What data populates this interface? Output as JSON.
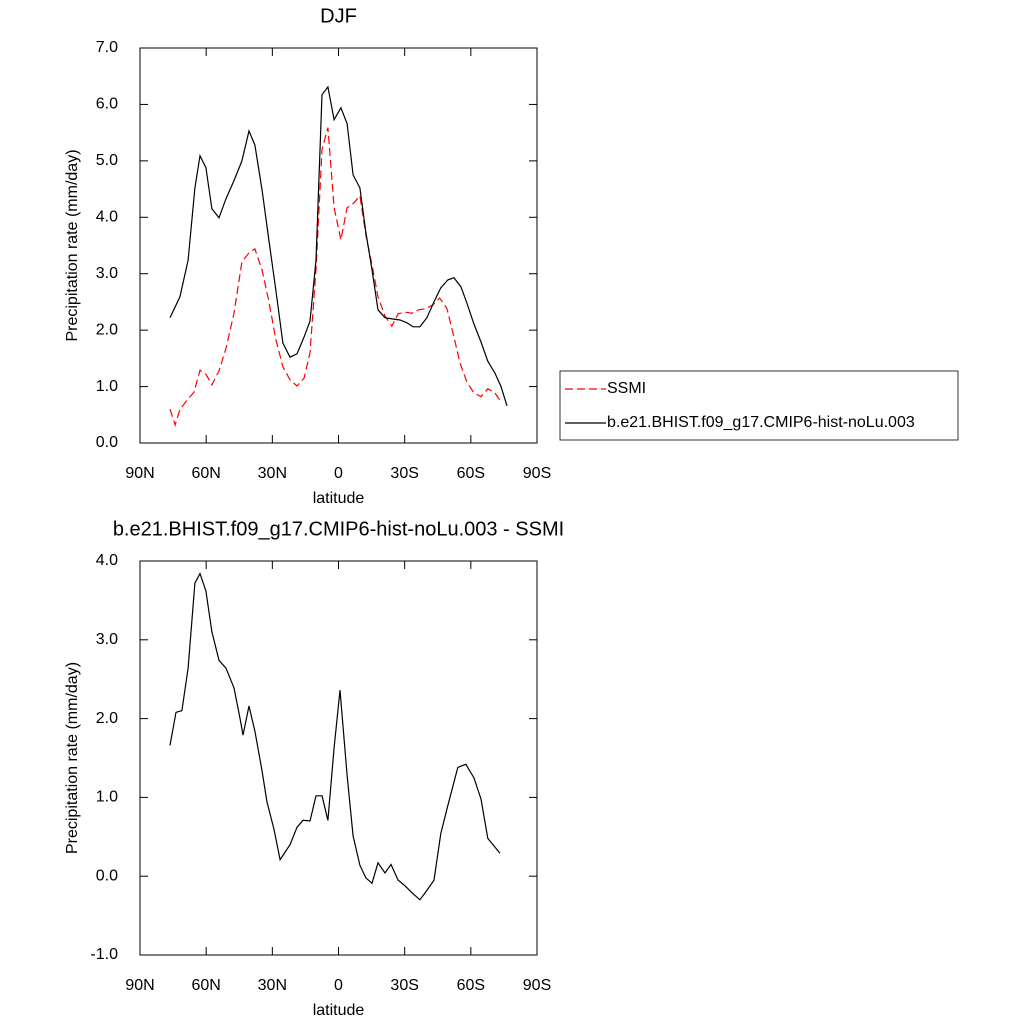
{
  "chart_data": [
    {
      "type": "line",
      "title": "DJF",
      "xlabel": "latitude",
      "ylabel": "Precipitation rate (mm/day)",
      "xlim": [
        90,
        -90
      ],
      "xticks": [
        {
          "value": 90,
          "label": "90N"
        },
        {
          "value": 60,
          "label": "60N"
        },
        {
          "value": 30,
          "label": "30N"
        },
        0,
        {
          "value": -30,
          "label": "30S"
        },
        {
          "value": -60,
          "label": "60S"
        },
        {
          "value": -90,
          "label": "90S"
        }
      ],
      "ylim": [
        0,
        7
      ],
      "yticks": [
        {
          "value": 0,
          "label": "0.0"
        },
        {
          "value": 1,
          "label": "1.0"
        },
        {
          "value": 2,
          "label": "2.0"
        },
        {
          "value": 3,
          "label": "3.0"
        },
        {
          "value": 4,
          "label": "4.0"
        },
        {
          "value": 5,
          "label": "5.0"
        },
        {
          "value": 6,
          "label": "6.0"
        },
        {
          "value": 7,
          "label": "7.0"
        }
      ],
      "legend": "right",
      "series": [
        {
          "name": "SSMI",
          "color": "#ff0000",
          "dash": "dashed",
          "x": [
            76.4,
            74.1,
            71.9,
            68.7,
            65.5,
            62.8,
            60.1,
            57.4,
            54.2,
            51.0,
            47.4,
            43.8,
            40.6,
            37.9,
            34.7,
            31.5,
            28.4,
            25.2,
            22.0,
            18.8,
            15.6,
            12.9,
            10.2,
            7.5,
            4.8,
            2.0,
            -1.1,
            -3.9,
            -6.6,
            -9.7,
            -12.4,
            -15.2,
            -17.9,
            -21.1,
            -24.2,
            -27.0,
            -30.1,
            -33.3,
            -36.4,
            -39.6,
            -42.8,
            -45.9,
            -49.2,
            -52.3,
            -55.1,
            -58.2,
            -61.4,
            -64.6,
            -67.7,
            -70.9,
            -73.6
          ],
          "values": [
            0.6,
            0.32,
            0.59,
            0.76,
            0.9,
            1.29,
            1.22,
            1.03,
            1.28,
            1.68,
            2.3,
            3.21,
            3.37,
            3.44,
            3.07,
            2.5,
            1.83,
            1.35,
            1.12,
            1.01,
            1.15,
            1.6,
            3.07,
            5.2,
            5.59,
            4.17,
            3.6,
            4.17,
            4.24,
            4.38,
            3.69,
            3.16,
            2.59,
            2.25,
            2.07,
            2.29,
            2.32,
            2.3,
            2.36,
            2.38,
            2.45,
            2.57,
            2.38,
            1.88,
            1.42,
            1.08,
            0.89,
            0.82,
            0.96,
            0.89,
            0.73
          ]
        },
        {
          "name": "b.e21.BHIST.f09_g17.CMIP6-hist-noLu.003",
          "color": "#000000",
          "dash": "solid",
          "x": [
            76.4,
            71.9,
            68.2,
            65.1,
            62.8,
            60.1,
            57.4,
            54.2,
            51.0,
            47.4,
            43.8,
            40.6,
            37.9,
            34.7,
            31.5,
            28.4,
            25.2,
            22.0,
            18.8,
            15.6,
            12.9,
            10.2,
            7.5,
            4.8,
            2.0,
            -1.1,
            -3.9,
            -6.6,
            -9.7,
            -12.4,
            -15.2,
            -17.9,
            -21.1,
            -24.2,
            -27.9,
            -31.0,
            -33.8,
            -36.9,
            -40.1,
            -43.3,
            -46.4,
            -49.6,
            -52.3,
            -55.5,
            -58.2,
            -61.4,
            -64.6,
            -67.7,
            -70.9,
            -73.6,
            -76.4
          ],
          "values": [
            2.22,
            2.59,
            3.24,
            4.52,
            5.09,
            4.88,
            4.15,
            3.99,
            4.33,
            4.65,
            5.0,
            5.53,
            5.28,
            4.49,
            3.58,
            2.7,
            1.77,
            1.52,
            1.58,
            1.88,
            2.16,
            3.24,
            6.17,
            6.31,
            5.73,
            5.94,
            5.66,
            4.75,
            4.52,
            3.74,
            3.07,
            2.36,
            2.22,
            2.2,
            2.18,
            2.13,
            2.06,
            2.06,
            2.22,
            2.5,
            2.75,
            2.89,
            2.93,
            2.77,
            2.48,
            2.11,
            1.79,
            1.45,
            1.24,
            1.01,
            0.66
          ]
        }
      ]
    },
    {
      "type": "line",
      "title": "b.e21.BHIST.f09_g17.CMIP6-hist-noLu.003 - SSMI",
      "xlabel": "latitude",
      "ylabel": "Precipitation rate (mm/day)",
      "xlim": [
        90,
        -90
      ],
      "xticks": [
        {
          "value": 90,
          "label": "90N"
        },
        {
          "value": 60,
          "label": "60N"
        },
        {
          "value": 30,
          "label": "30N"
        },
        0,
        {
          "value": -30,
          "label": "30S"
        },
        {
          "value": -60,
          "label": "60S"
        },
        {
          "value": -90,
          "label": "90S"
        }
      ],
      "ylim": [
        -1,
        4
      ],
      "yticks": [
        {
          "value": -1,
          "label": "-1.0"
        },
        {
          "value": 0,
          "label": "0.0"
        },
        {
          "value": 1,
          "label": "1.0"
        },
        {
          "value": 2,
          "label": "2.0"
        },
        {
          "value": 3,
          "label": "3.0"
        },
        {
          "value": 4,
          "label": "4.0"
        }
      ],
      "series": [
        {
          "color": "#000000",
          "dash": "solid",
          "x": [
            76.4,
            73.7,
            71.0,
            68.2,
            65.1,
            62.8,
            60.1,
            57.4,
            54.2,
            51.0,
            47.4,
            44.7,
            43.3,
            40.6,
            37.9,
            34.7,
            32.4,
            29.3,
            26.5,
            22.0,
            18.8,
            16.1,
            12.9,
            10.2,
            7.5,
            4.8,
            2.0,
            -0.7,
            -3.9,
            -6.6,
            -9.7,
            -12.4,
            -15.2,
            -17.9,
            -21.1,
            -23.8,
            -27.0,
            -30.1,
            -33.3,
            -36.9,
            -40.1,
            -43.3,
            -46.4,
            -49.6,
            -54.1,
            -57.7,
            -61.4,
            -64.6,
            -67.7,
            -70.9,
            -73.2
          ],
          "values": [
            1.66,
            2.08,
            2.1,
            2.64,
            3.72,
            3.84,
            3.62,
            3.1,
            2.74,
            2.64,
            2.39,
            2.01,
            1.79,
            2.16,
            1.84,
            1.34,
            0.94,
            0.6,
            0.21,
            0.4,
            0.62,
            0.71,
            0.7,
            1.02,
            1.02,
            0.71,
            1.63,
            2.36,
            1.28,
            0.51,
            0.14,
            -0.02,
            -0.09,
            0.17,
            0.04,
            0.15,
            -0.05,
            -0.12,
            -0.21,
            -0.3,
            -0.18,
            -0.05,
            0.54,
            0.9,
            1.38,
            1.42,
            1.25,
            0.98,
            0.48,
            0.37,
            0.29
          ]
        }
      ]
    }
  ]
}
